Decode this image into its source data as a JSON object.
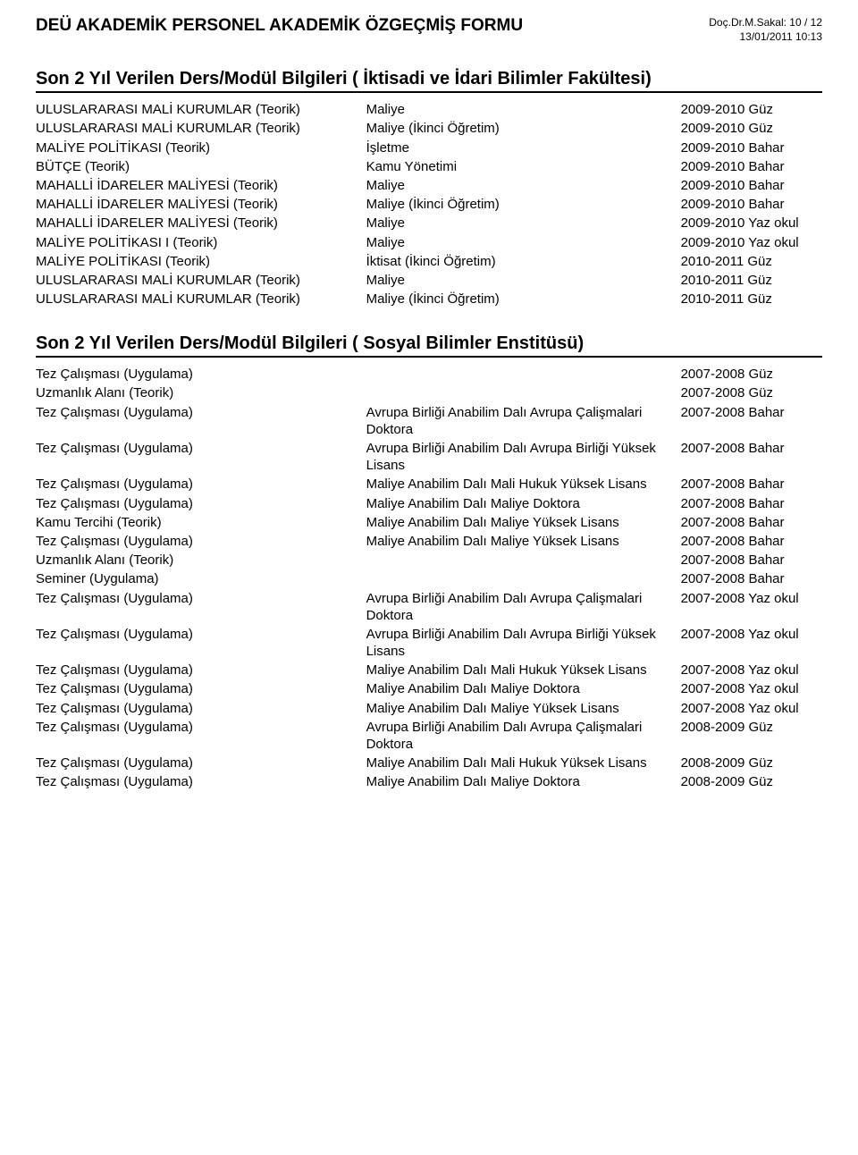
{
  "header": {
    "title": "DEÜ AKADEMİK PERSONEL AKADEMİK ÖZGEÇMİŞ FORMU",
    "author_page": "Doç.Dr.M.Sakal: 10 / 12",
    "timestamp": "13/01/2011 10:13"
  },
  "section1": {
    "heading": "Son 2 Yıl Verilen Ders/Modül Bilgileri ( İktisadi ve İdari Bilimler Fakültesi)",
    "rows": [
      {
        "c1": "ULUSLARARASI MALİ KURUMLAR (Teorik)",
        "c2": "Maliye",
        "c3": "2009-2010 Güz"
      },
      {
        "c1": "ULUSLARARASI MALİ KURUMLAR (Teorik)",
        "c2": "Maliye (İkinci Öğretim)",
        "c3": "2009-2010 Güz"
      },
      {
        "c1": "MALİYE POLİTİKASI (Teorik)",
        "c2": "İşletme",
        "c3": "2009-2010 Bahar"
      },
      {
        "c1": "BÜTÇE (Teorik)",
        "c2": "Kamu Yönetimi",
        "c3": "2009-2010 Bahar"
      },
      {
        "c1": "MAHALLİ İDARELER MALİYESİ (Teorik)",
        "c2": "Maliye",
        "c3": "2009-2010 Bahar"
      },
      {
        "c1": "MAHALLİ İDARELER MALİYESİ (Teorik)",
        "c2": "Maliye (İkinci Öğretim)",
        "c3": "2009-2010 Bahar"
      },
      {
        "c1": "MAHALLİ İDARELER MALİYESİ (Teorik)",
        "c2": "Maliye",
        "c3": "2009-2010 Yaz okul"
      },
      {
        "c1": "MALİYE POLİTİKASI I (Teorik)",
        "c2": "Maliye",
        "c3": "2009-2010 Yaz okul"
      },
      {
        "c1": "MALİYE POLİTİKASI (Teorik)",
        "c2": "İktisat (İkinci Öğretim)",
        "c3": "2010-2011 Güz"
      },
      {
        "c1": "ULUSLARARASI MALİ KURUMLAR (Teorik)",
        "c2": "Maliye",
        "c3": "2010-2011 Güz"
      },
      {
        "c1": "ULUSLARARASI MALİ KURUMLAR (Teorik)",
        "c2": "Maliye (İkinci Öğretim)",
        "c3": "2010-2011 Güz"
      }
    ]
  },
  "section2": {
    "heading": "Son 2 Yıl Verilen Ders/Modül Bilgileri ( Sosyal Bilimler Enstitüsü)",
    "rows": [
      {
        "c1": "Tez Çalışması (Uygulama)",
        "c2": "",
        "c3": "2007-2008 Güz"
      },
      {
        "c1": "Uzmanlık Alanı (Teorik)",
        "c2": "",
        "c3": "2007-2008 Güz"
      },
      {
        "c1": "Tez Çalışması (Uygulama)",
        "c2": "Avrupa Birliği Anabilim Dalı Avrupa Çalişmalari Doktora",
        "c3": "2007-2008 Bahar"
      },
      {
        "c1": "Tez Çalışması (Uygulama)",
        "c2": "Avrupa Birliği Anabilim Dalı Avrupa Birliği Yüksek Lisans",
        "c3": "2007-2008 Bahar"
      },
      {
        "c1": "Tez Çalışması (Uygulama)",
        "c2": "Maliye Anabilim Dalı Mali Hukuk Yüksek Lisans",
        "c3": "2007-2008 Bahar"
      },
      {
        "c1": "Tez Çalışması (Uygulama)",
        "c2": "Maliye Anabilim Dalı Maliye Doktora",
        "c3": "2007-2008 Bahar"
      },
      {
        "c1": "Kamu Tercihi (Teorik)",
        "c2": "Maliye Anabilim Dalı Maliye Yüksek Lisans",
        "c3": "2007-2008 Bahar"
      },
      {
        "c1": "Tez Çalışması (Uygulama)",
        "c2": "Maliye Anabilim Dalı Maliye Yüksek Lisans",
        "c3": "2007-2008 Bahar"
      },
      {
        "c1": "Uzmanlık Alanı (Teorik)",
        "c2": "",
        "c3": "2007-2008 Bahar"
      },
      {
        "c1": "Seminer (Uygulama)",
        "c2": "",
        "c3": "2007-2008 Bahar"
      },
      {
        "c1": "Tez Çalışması (Uygulama)",
        "c2": "Avrupa Birliği Anabilim Dalı Avrupa Çalişmalari Doktora",
        "c3": "2007-2008 Yaz okul"
      },
      {
        "c1": "Tez Çalışması (Uygulama)",
        "c2": "Avrupa Birliği Anabilim Dalı Avrupa Birliği Yüksek Lisans",
        "c3": "2007-2008 Yaz okul"
      },
      {
        "c1": "Tez Çalışması (Uygulama)",
        "c2": "Maliye Anabilim Dalı Mali Hukuk Yüksek Lisans",
        "c3": "2007-2008 Yaz okul"
      },
      {
        "c1": "Tez Çalışması (Uygulama)",
        "c2": "Maliye Anabilim Dalı Maliye Doktora",
        "c3": "2007-2008 Yaz okul"
      },
      {
        "c1": "Tez Çalışması (Uygulama)",
        "c2": "Maliye Anabilim Dalı Maliye Yüksek Lisans",
        "c3": "2007-2008 Yaz okul"
      },
      {
        "c1": "Tez Çalışması (Uygulama)",
        "c2": "Avrupa Birliği Anabilim Dalı Avrupa Çalişmalari Doktora",
        "c3": "2008-2009 Güz"
      },
      {
        "c1": "Tez Çalışması (Uygulama)",
        "c2": "Maliye Anabilim Dalı Mali Hukuk Yüksek Lisans",
        "c3": "2008-2009 Güz"
      },
      {
        "c1": "Tez Çalışması (Uygulama)",
        "c2": "Maliye Anabilim Dalı Maliye Doktora",
        "c3": "2008-2009 Güz"
      }
    ]
  }
}
